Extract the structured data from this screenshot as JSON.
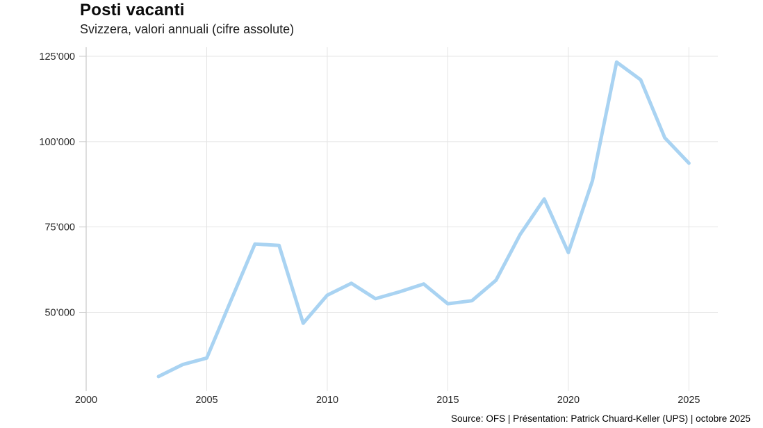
{
  "header": {
    "title": "Posti vacanti",
    "subtitle": "Svizzera, valori annuali (cifre assolute)"
  },
  "footer": {
    "source": "Source: OFS | Présentation: Patrick Chuard-Keller (UPS) | octobre 2025"
  },
  "chart_data": {
    "type": "line",
    "title": "Posti vacanti",
    "subtitle": "Svizzera, valori annuali (cifre assolute)",
    "series": [
      {
        "name": "Posti vacanti (Svizzera)",
        "x": [
          2003,
          2004,
          2005,
          2006,
          2007,
          2008,
          2009,
          2010,
          2011,
          2012,
          2013,
          2014,
          2015,
          2016,
          2017,
          2018,
          2019,
          2020,
          2021,
          2022,
          2023,
          2024,
          2025
        ],
        "values": [
          31200,
          34700,
          36600,
          53400,
          70000,
          69600,
          46800,
          55000,
          58500,
          54000,
          56000,
          58300,
          52500,
          53400,
          59400,
          72800,
          83200,
          67500,
          88600,
          123300,
          118100,
          101100,
          93700
        ]
      }
    ],
    "xlabel": "",
    "ylabel": "",
    "x_ticks": [
      {
        "value": 2000,
        "label": "2000"
      },
      {
        "value": 2005,
        "label": "2005"
      },
      {
        "value": 2010,
        "label": "2010"
      },
      {
        "value": 2015,
        "label": "2015"
      },
      {
        "value": 2020,
        "label": "2020"
      },
      {
        "value": 2025,
        "label": "2025"
      }
    ],
    "y_ticks": [
      {
        "value": 50000,
        "label": "50’000"
      },
      {
        "value": 75000,
        "label": "75’000"
      },
      {
        "value": 100000,
        "label": "100’000"
      },
      {
        "value": 125000,
        "label": "125’000"
      }
    ],
    "x_range": [
      2000,
      2026.2
    ],
    "y_range": [
      26900,
      127650
    ],
    "grid": true,
    "legend_position": "none",
    "colors": {
      "line": "#a9d3f2",
      "grid": "#e4e4e4",
      "axis": "#c9c9c9",
      "tick_text": "#262626"
    },
    "source": "Source: OFS | Présentation: Patrick Chuard-Keller (UPS) | octobre 2025"
  }
}
